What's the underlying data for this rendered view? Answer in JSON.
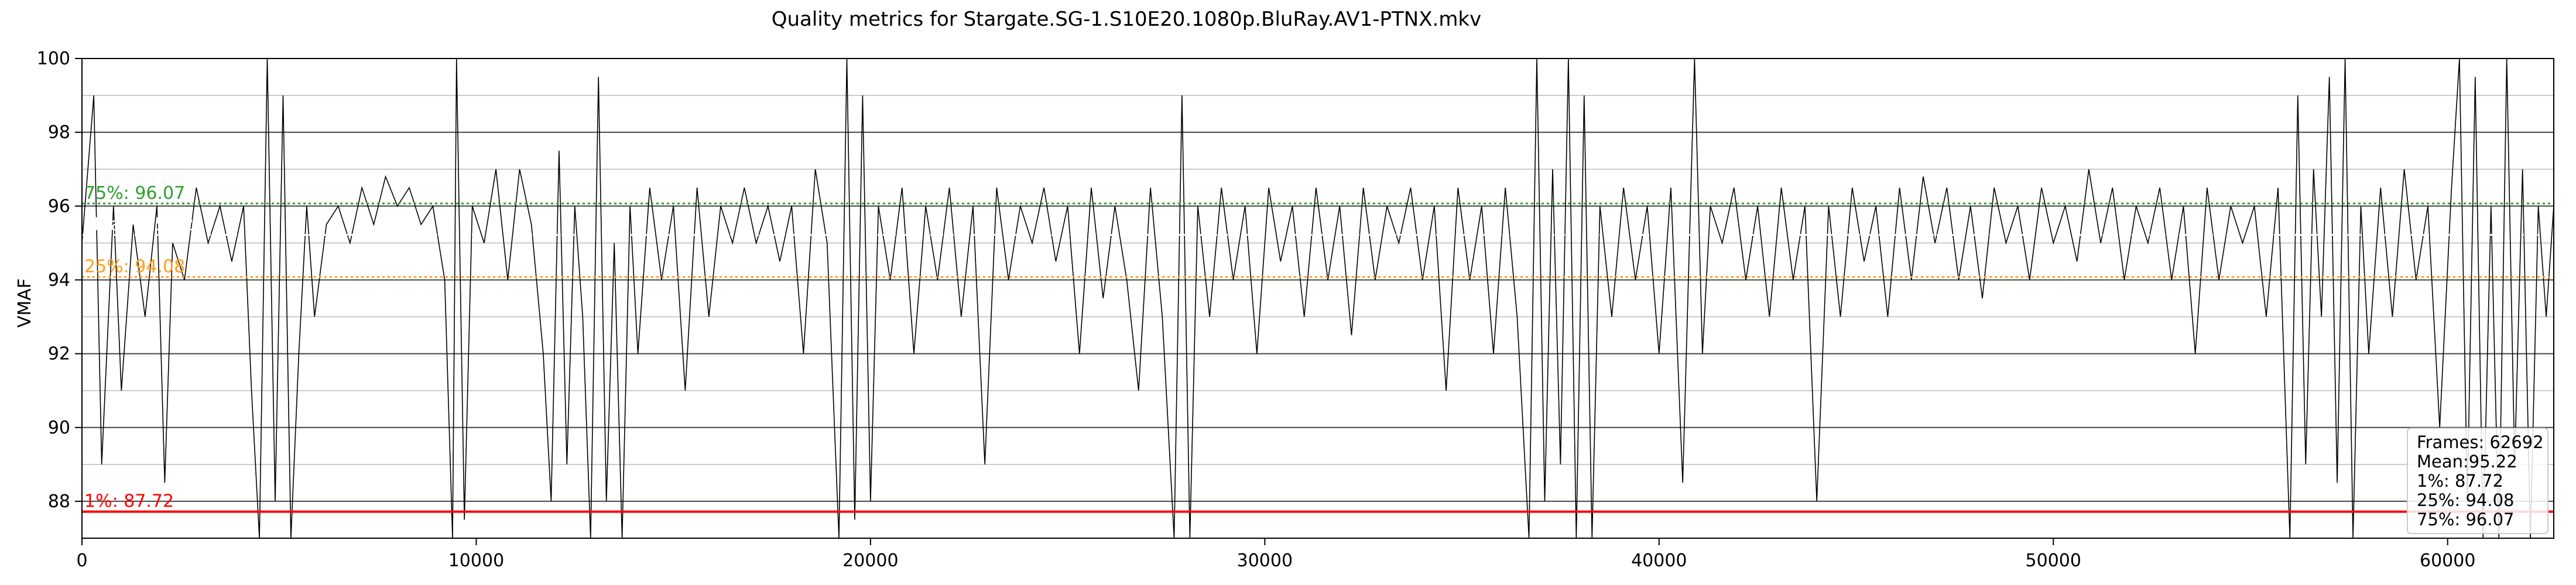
{
  "chart_data": {
    "type": "line",
    "title": "Quality metrics for Stargate.SG-1.S10E20.1080p.BluRay.AV1-PTNX.mkv",
    "xlabel": "",
    "ylabel": "VMAF",
    "xlim": [
      0,
      62692
    ],
    "ylim": [
      87,
      100
    ],
    "grid": true,
    "x_ticks": [
      0,
      10000,
      20000,
      30000,
      40000,
      50000,
      60000
    ],
    "x_tick_labels": [
      "0",
      "10000",
      "20000",
      "30000",
      "40000",
      "50000",
      "60000"
    ],
    "y_ticks": [
      88,
      90,
      92,
      94,
      96,
      98,
      100
    ],
    "y_tick_labels": [
      "88",
      "90",
      "92",
      "94",
      "96",
      "98",
      "100"
    ],
    "series": [
      {
        "values_note": "",
        "color": "#000000",
        "points": [
          [
            0,
            95.0
          ],
          [
            300,
            99.0
          ],
          [
            500,
            89.0
          ],
          [
            800,
            96.0
          ],
          [
            1000,
            91.0
          ],
          [
            1300,
            95.5
          ],
          [
            1600,
            93.0
          ],
          [
            1900,
            96.0
          ],
          [
            2100,
            88.5
          ],
          [
            2300,
            95.0
          ],
          [
            2600,
            94.0
          ],
          [
            2900,
            96.5
          ],
          [
            3200,
            95.0
          ],
          [
            3500,
            96.0
          ],
          [
            3800,
            94.5
          ],
          [
            4100,
            96.0
          ],
          [
            4300,
            91.0
          ],
          [
            4500,
            87.0
          ],
          [
            4700,
            100.0
          ],
          [
            4900,
            88.0
          ],
          [
            5100,
            99.0
          ],
          [
            5300,
            87.0
          ],
          [
            5500,
            92.0
          ],
          [
            5700,
            96.0
          ],
          [
            5900,
            93.0
          ],
          [
            6200,
            95.5
          ],
          [
            6500,
            96.0
          ],
          [
            6800,
            95.0
          ],
          [
            7100,
            96.5
          ],
          [
            7400,
            95.5
          ],
          [
            7700,
            96.8
          ],
          [
            8000,
            96.0
          ],
          [
            8300,
            96.5
          ],
          [
            8600,
            95.5
          ],
          [
            8900,
            96.0
          ],
          [
            9200,
            94.0
          ],
          [
            9400,
            87.0
          ],
          [
            9500,
            100.0
          ],
          [
            9700,
            87.5
          ],
          [
            9900,
            96.0
          ],
          [
            10200,
            95.0
          ],
          [
            10500,
            97.0
          ],
          [
            10800,
            94.0
          ],
          [
            11100,
            97.0
          ],
          [
            11400,
            95.5
          ],
          [
            11700,
            92.0
          ],
          [
            11900,
            88.0
          ],
          [
            12100,
            97.5
          ],
          [
            12300,
            89.0
          ],
          [
            12500,
            96.0
          ],
          [
            12700,
            93.0
          ],
          [
            12900,
            87.0
          ],
          [
            13100,
            99.5
          ],
          [
            13300,
            88.0
          ],
          [
            13500,
            95.0
          ],
          [
            13700,
            87.0
          ],
          [
            13900,
            96.0
          ],
          [
            14100,
            92.0
          ],
          [
            14400,
            96.5
          ],
          [
            14700,
            94.0
          ],
          [
            15000,
            96.0
          ],
          [
            15300,
            91.0
          ],
          [
            15600,
            96.5
          ],
          [
            15900,
            93.0
          ],
          [
            16200,
            96.0
          ],
          [
            16500,
            95.0
          ],
          [
            16800,
            96.5
          ],
          [
            17100,
            95.0
          ],
          [
            17400,
            96.0
          ],
          [
            17700,
            94.5
          ],
          [
            18000,
            96.0
          ],
          [
            18300,
            92.0
          ],
          [
            18600,
            97.0
          ],
          [
            18900,
            95.0
          ],
          [
            19200,
            87.0
          ],
          [
            19400,
            100.0
          ],
          [
            19600,
            87.5
          ],
          [
            19800,
            99.0
          ],
          [
            20000,
            88.0
          ],
          [
            20200,
            96.0
          ],
          [
            20500,
            94.0
          ],
          [
            20800,
            96.5
          ],
          [
            21100,
            92.0
          ],
          [
            21400,
            96.0
          ],
          [
            21700,
            94.0
          ],
          [
            22000,
            96.5
          ],
          [
            22300,
            93.0
          ],
          [
            22600,
            96.0
          ],
          [
            22900,
            89.0
          ],
          [
            23200,
            96.5
          ],
          [
            23500,
            94.0
          ],
          [
            23800,
            96.0
          ],
          [
            24100,
            95.0
          ],
          [
            24400,
            96.5
          ],
          [
            24700,
            94.5
          ],
          [
            25000,
            96.0
          ],
          [
            25300,
            92.0
          ],
          [
            25600,
            96.5
          ],
          [
            25900,
            93.5
          ],
          [
            26200,
            96.0
          ],
          [
            26500,
            94.0
          ],
          [
            26800,
            91.0
          ],
          [
            27100,
            96.5
          ],
          [
            27400,
            93.0
          ],
          [
            27700,
            87.0
          ],
          [
            27900,
            99.0
          ],
          [
            28100,
            87.0
          ],
          [
            28300,
            96.0
          ],
          [
            28600,
            93.0
          ],
          [
            28900,
            96.5
          ],
          [
            29200,
            94.0
          ],
          [
            29500,
            96.0
          ],
          [
            29800,
            92.0
          ],
          [
            30100,
            96.5
          ],
          [
            30400,
            94.5
          ],
          [
            30700,
            96.0
          ],
          [
            31000,
            93.0
          ],
          [
            31300,
            96.5
          ],
          [
            31600,
            94.0
          ],
          [
            31900,
            96.0
          ],
          [
            32200,
            92.5
          ],
          [
            32500,
            96.5
          ],
          [
            32800,
            94.0
          ],
          [
            33100,
            96.0
          ],
          [
            33400,
            95.0
          ],
          [
            33700,
            96.5
          ],
          [
            34000,
            94.0
          ],
          [
            34300,
            96.0
          ],
          [
            34600,
            91.0
          ],
          [
            34900,
            96.5
          ],
          [
            35200,
            94.0
          ],
          [
            35500,
            96.0
          ],
          [
            35800,
            92.0
          ],
          [
            36100,
            96.5
          ],
          [
            36400,
            93.0
          ],
          [
            36700,
            87.0
          ],
          [
            36900,
            100.0
          ],
          [
            37100,
            88.0
          ],
          [
            37300,
            97.0
          ],
          [
            37500,
            89.0
          ],
          [
            37700,
            100.0
          ],
          [
            37900,
            87.0
          ],
          [
            38100,
            99.0
          ],
          [
            38300,
            87.0
          ],
          [
            38500,
            96.0
          ],
          [
            38800,
            93.0
          ],
          [
            39100,
            96.5
          ],
          [
            39400,
            94.0
          ],
          [
            39700,
            96.0
          ],
          [
            40000,
            92.0
          ],
          [
            40300,
            96.5
          ],
          [
            40600,
            88.5
          ],
          [
            40900,
            100.0
          ],
          [
            41100,
            92.0
          ],
          [
            41300,
            96.0
          ],
          [
            41600,
            95.0
          ],
          [
            41900,
            96.5
          ],
          [
            42200,
            94.0
          ],
          [
            42500,
            96.0
          ],
          [
            42800,
            93.0
          ],
          [
            43100,
            96.5
          ],
          [
            43400,
            94.0
          ],
          [
            43700,
            96.0
          ],
          [
            44000,
            88.0
          ],
          [
            44300,
            96.0
          ],
          [
            44600,
            93.0
          ],
          [
            44900,
            96.5
          ],
          [
            45200,
            94.5
          ],
          [
            45500,
            96.0
          ],
          [
            45800,
            93.0
          ],
          [
            46100,
            96.5
          ],
          [
            46400,
            94.0
          ],
          [
            46700,
            96.8
          ],
          [
            47000,
            95.0
          ],
          [
            47300,
            96.5
          ],
          [
            47600,
            94.0
          ],
          [
            47900,
            96.0
          ],
          [
            48200,
            93.5
          ],
          [
            48500,
            96.5
          ],
          [
            48800,
            95.0
          ],
          [
            49100,
            96.0
          ],
          [
            49400,
            94.0
          ],
          [
            49700,
            96.5
          ],
          [
            50000,
            95.0
          ],
          [
            50300,
            96.0
          ],
          [
            50600,
            94.5
          ],
          [
            50900,
            97.0
          ],
          [
            51200,
            95.0
          ],
          [
            51500,
            96.5
          ],
          [
            51800,
            94.0
          ],
          [
            52100,
            96.0
          ],
          [
            52400,
            95.0
          ],
          [
            52700,
            96.5
          ],
          [
            53000,
            94.0
          ],
          [
            53300,
            96.0
          ],
          [
            53600,
            92.0
          ],
          [
            53900,
            96.5
          ],
          [
            54200,
            94.0
          ],
          [
            54500,
            96.0
          ],
          [
            54800,
            95.0
          ],
          [
            55100,
            96.0
          ],
          [
            55400,
            93.0
          ],
          [
            55700,
            96.5
          ],
          [
            56000,
            87.0
          ],
          [
            56200,
            99.0
          ],
          [
            56400,
            89.0
          ],
          [
            56600,
            97.0
          ],
          [
            56800,
            93.0
          ],
          [
            57000,
            99.5
          ],
          [
            57200,
            88.5
          ],
          [
            57400,
            100.0
          ],
          [
            57600,
            87.0
          ],
          [
            57800,
            96.0
          ],
          [
            58000,
            92.0
          ],
          [
            58300,
            96.5
          ],
          [
            58600,
            93.0
          ],
          [
            58900,
            97.0
          ],
          [
            59200,
            94.0
          ],
          [
            59500,
            96.0
          ],
          [
            59800,
            90.0
          ],
          [
            60100,
            96.5
          ],
          [
            60300,
            100.0
          ],
          [
            60500,
            88.0
          ],
          [
            60700,
            99.5
          ],
          [
            60900,
            87.0
          ],
          [
            61100,
            96.0
          ],
          [
            61300,
            87.0
          ],
          [
            61500,
            100.0
          ],
          [
            61700,
            89.0
          ],
          [
            61900,
            97.0
          ],
          [
            62100,
            87.0
          ],
          [
            62300,
            96.0
          ],
          [
            62500,
            93.0
          ],
          [
            62692,
            96.0
          ]
        ]
      }
    ],
    "reference_lines": [
      {
        "label": "75%: 96.07",
        "value": 96.07,
        "color": "#2ca02c",
        "style": "dotted"
      },
      {
        "label": "Mean: 95.22",
        "value": 95.22,
        "color": "#ffffff",
        "style": "dotted"
      },
      {
        "label": "25%: 94.08",
        "value": 94.08,
        "color": "#ff9f1a",
        "style": "dotted"
      },
      {
        "label": "1%: 87.72",
        "value": 87.72,
        "color": "#ff0000",
        "style": "solid"
      }
    ],
    "legend": {
      "position": "bottom-right",
      "lines": [
        "Frames: 62692",
        "Mean:95.22",
        "1%: 87.72",
        "25%: 94.08",
        "75%: 96.07"
      ]
    }
  }
}
